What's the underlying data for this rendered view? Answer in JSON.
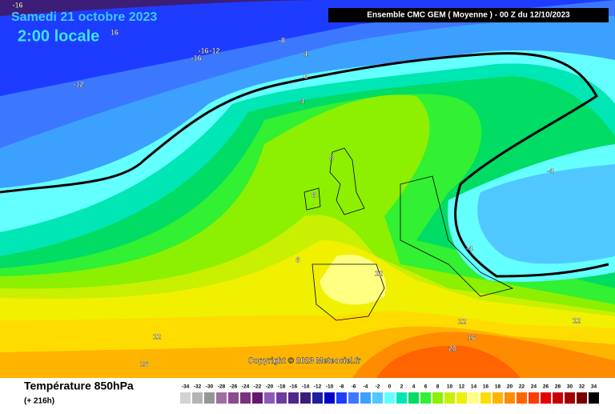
{
  "header": {
    "date": "Samedi 21 octobre 2023",
    "local_time": "2:00 locale",
    "model": "Ensemble CMC GEM  ( Moyenne )  -  00 Z du 12/10/2023"
  },
  "copyright": "Copyright © 2023 Meteociel.fr",
  "footer": {
    "title": "Température 850hPa",
    "lead": "(+ 216h)"
  },
  "contour_labels": [
    -16,
    16,
    -8,
    -16,
    -12,
    -16,
    -4,
    0,
    -4,
    -12,
    8,
    8,
    8,
    12,
    -4,
    -4,
    12,
    16,
    20,
    12,
    12,
    16
  ],
  "legend": {
    "values": [
      -34,
      -32,
      -30,
      -28,
      -26,
      -24,
      -22,
      -20,
      -18,
      -16,
      -14,
      -12,
      -10,
      -8,
      -6,
      -4,
      -2,
      0,
      2,
      4,
      6,
      8,
      10,
      12,
      14,
      16,
      18,
      20,
      22,
      24,
      26,
      28,
      30,
      32,
      34
    ],
    "colors": [
      "#d2d2d2",
      "#b4b4b4",
      "#969696",
      "#a06ea0",
      "#8c4b8c",
      "#78327d",
      "#64196e",
      "#8c5ab4",
      "#6e3ca0",
      "#50288c",
      "#3c1e78",
      "#1e1ea0",
      "#0000c8",
      "#1e3cff",
      "#3c78ff",
      "#3ca0ff",
      "#50c8ff",
      "#64ffff",
      "#00e6b4",
      "#00dc64",
      "#32f032",
      "#8cf000",
      "#c8f000",
      "#f0f000",
      "#ffff82",
      "#ffdc00",
      "#ffb400",
      "#ff8c00",
      "#ff6400",
      "#ff3c00",
      "#e60000",
      "#c80000",
      "#a00000",
      "#780000",
      "#000000"
    ]
  }
}
